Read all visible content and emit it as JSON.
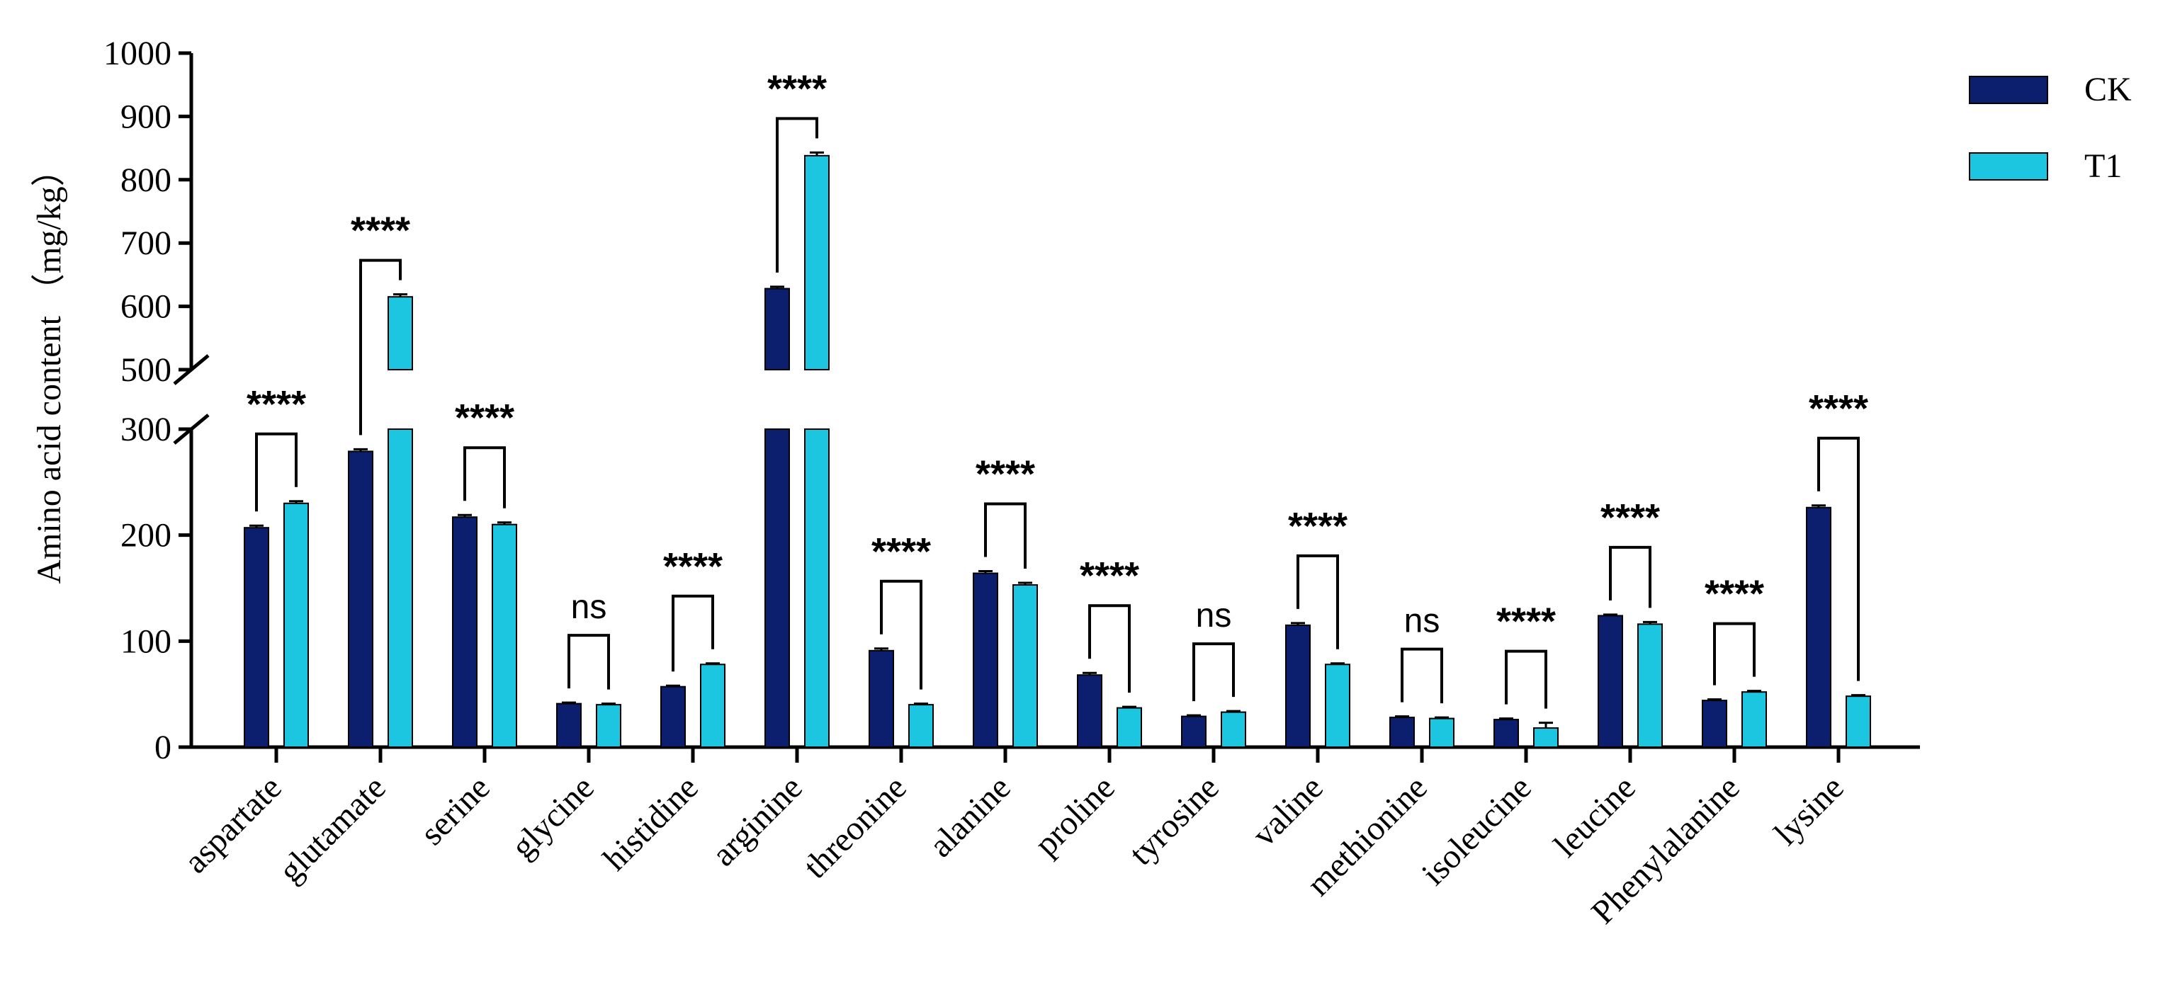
{
  "chart_data": {
    "type": "bar",
    "ylabel": "Amino acid content （mg/kg）",
    "categories": [
      "aspartate",
      "glutamate",
      "serine",
      "glycine",
      "histidine",
      "arginine",
      "threonine",
      "alanine",
      "proline",
      "tyrosine",
      "valine",
      "methionine",
      "isoleucine",
      "leucine",
      "Phenylalanine",
      "lysine"
    ],
    "series": [
      {
        "name": "CK",
        "color": "#0b1f6e",
        "values": [
          207,
          279,
          217,
          41,
          57,
          628,
          91,
          164,
          68,
          29,
          115,
          28,
          26,
          124,
          44,
          226
        ],
        "errors": [
          2,
          2,
          2,
          1,
          1,
          3,
          2,
          2,
          2,
          1,
          2,
          1,
          1,
          1,
          1,
          2
        ]
      },
      {
        "name": "T1",
        "color": "#1cc6e0",
        "values": [
          230,
          615,
          210,
          40,
          78,
          838,
          40,
          153,
          37,
          33,
          78,
          27,
          18,
          116,
          52,
          48
        ],
        "errors": [
          2,
          4,
          2,
          1,
          1,
          5,
          1,
          2,
          1,
          1,
          1,
          1,
          5,
          2,
          1,
          1
        ]
      }
    ],
    "significance": [
      "****",
      "****",
      "****",
      "ns",
      "****",
      "****",
      "****",
      "****",
      "****",
      "ns",
      "****",
      "ns",
      "****",
      "****",
      "****",
      "****"
    ],
    "y_segments": [
      {
        "range": [
          0,
          300
        ],
        "ticks": [
          0,
          100,
          200,
          300
        ]
      },
      {
        "range": [
          500,
          1000
        ],
        "ticks": [
          500,
          600,
          700,
          800,
          900,
          1000
        ]
      }
    ],
    "legend": {
      "position": "top-right",
      "entries": [
        "CK",
        "T1"
      ]
    },
    "grid": false
  }
}
